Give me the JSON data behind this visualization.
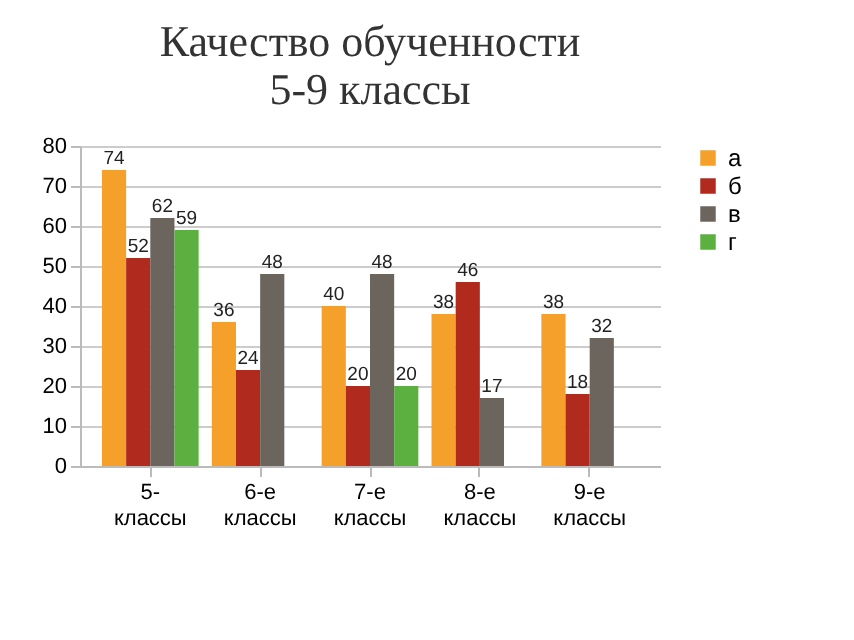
{
  "chart_data": {
    "type": "bar",
    "title": "Качество обученности\n5-9 классы",
    "categories": [
      "5- классы",
      "6-е классы",
      "7-е классы",
      "8-е классы",
      "9-е классы"
    ],
    "series": [
      {
        "name": "а",
        "color": "#f5a02a",
        "values": [
          74,
          36,
          40,
          38,
          38
        ]
      },
      {
        "name": "б",
        "color": "#b02a1e",
        "values": [
          52,
          24,
          20,
          46,
          18
        ]
      },
      {
        "name": "в",
        "color": "#6b655e",
        "values": [
          62,
          48,
          48,
          17,
          32
        ]
      },
      {
        "name": "г",
        "color": "#5cb040",
        "values": [
          59,
          null,
          20,
          null,
          null
        ]
      }
    ],
    "ylim": [
      0,
      80
    ],
    "yticks": [
      0,
      10,
      20,
      30,
      40,
      50,
      60,
      70,
      80
    ],
    "grid": "y",
    "legend": "right",
    "data_labels": true
  }
}
